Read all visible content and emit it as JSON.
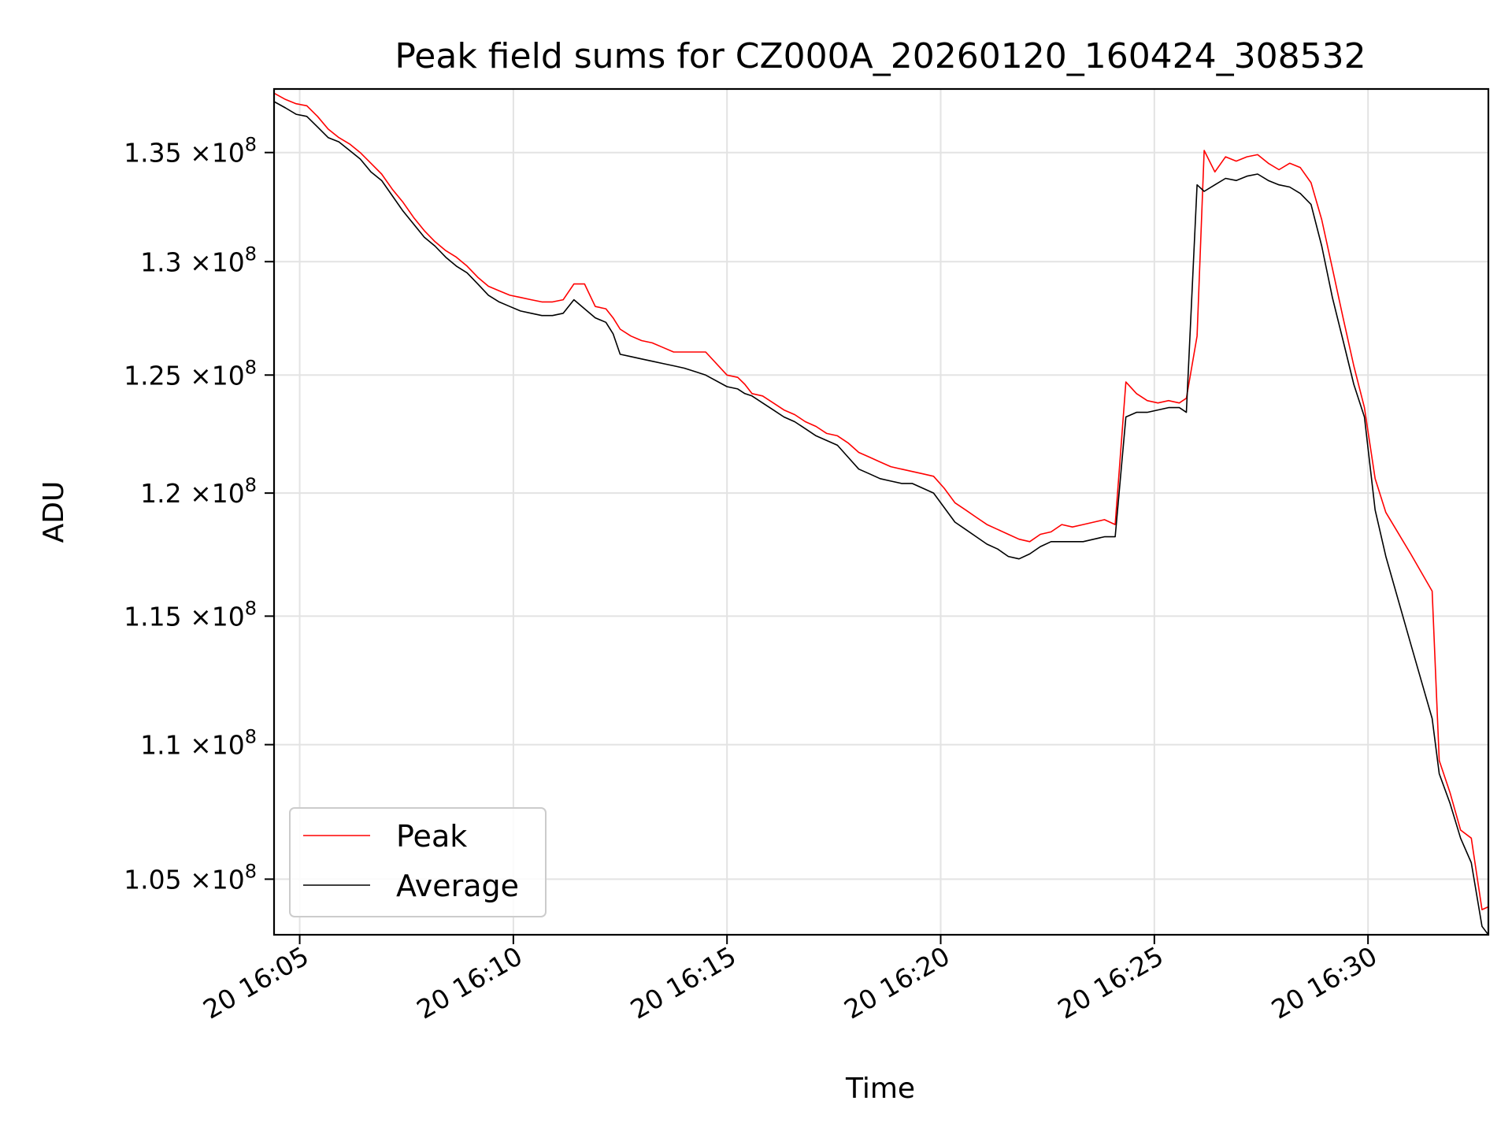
{
  "chart_data": {
    "type": "line",
    "title": "Peak field sums for CZ000A_20260120_160424_308532",
    "xlabel": "Time",
    "ylabel": "ADU",
    "y_scale": "log",
    "grid": true,
    "legend_position": "lower-left",
    "x_range": [
      "20 16:04:24",
      "20 16:32:49"
    ],
    "ylim": [
      103000000,
      138000000
    ],
    "x_ticks": [
      {
        "x": "20 16:05:00",
        "label": "20 16:05"
      },
      {
        "x": "20 16:10:00",
        "label": "20 16:10"
      },
      {
        "x": "20 16:15:00",
        "label": "20 16:15"
      },
      {
        "x": "20 16:20:00",
        "label": "20 16:20"
      },
      {
        "x": "20 16:25:00",
        "label": "20 16:25"
      },
      {
        "x": "20 16:30:00",
        "label": "20 16:30"
      }
    ],
    "y_ticks": [
      {
        "value": 105000000,
        "mantissa": "1.05",
        "exponent": "8"
      },
      {
        "value": 110000000,
        "mantissa": "1.1",
        "exponent": "8"
      },
      {
        "value": 115000000,
        "mantissa": "1.15",
        "exponent": "8"
      },
      {
        "value": 120000000,
        "mantissa": "1.2",
        "exponent": "8"
      },
      {
        "value": 125000000,
        "mantissa": "1.25",
        "exponent": "8"
      },
      {
        "value": 130000000,
        "mantissa": "1.3",
        "exponent": "8"
      },
      {
        "value": 135000000,
        "mantissa": "1.35",
        "exponent": "8"
      }
    ],
    "tick_times_label": "×10",
    "series": [
      {
        "name": "Peak",
        "color": "#ff0000",
        "x": [
          "20 16:04:24",
          "20 16:04:40",
          "20 16:04:55",
          "20 16:05:10",
          "20 16:05:25",
          "20 16:05:40",
          "20 16:05:55",
          "20 16:06:10",
          "20 16:06:25",
          "20 16:06:40",
          "20 16:06:55",
          "20 16:07:10",
          "20 16:07:25",
          "20 16:07:40",
          "20 16:07:55",
          "20 16:08:10",
          "20 16:08:25",
          "20 16:08:40",
          "20 16:08:55",
          "20 16:09:10",
          "20 16:09:25",
          "20 16:09:40",
          "20 16:09:55",
          "20 16:10:10",
          "20 16:10:25",
          "20 16:10:40",
          "20 16:10:55",
          "20 16:11:10",
          "20 16:11:25",
          "20 16:11:40",
          "20 16:11:55",
          "20 16:12:10",
          "20 16:12:20",
          "20 16:12:30",
          "20 16:12:45",
          "20 16:13:00",
          "20 16:13:15",
          "20 16:13:30",
          "20 16:13:45",
          "20 16:14:00",
          "20 16:14:10",
          "20 16:14:20",
          "20 16:14:30",
          "20 16:15:00",
          "20 16:15:15",
          "20 16:15:25",
          "20 16:15:35",
          "20 16:15:50",
          "20 16:16:05",
          "20 16:16:20",
          "20 16:16:35",
          "20 16:16:50",
          "20 16:17:05",
          "20 16:17:20",
          "20 16:17:35",
          "20 16:17:50",
          "20 16:18:05",
          "20 16:18:20",
          "20 16:18:35",
          "20 16:18:50",
          "20 16:19:05",
          "20 16:19:20",
          "20 16:19:35",
          "20 16:19:50",
          "20 16:20:05",
          "20 16:20:20",
          "20 16:20:35",
          "20 16:20:50",
          "20 16:21:05",
          "20 16:21:20",
          "20 16:21:35",
          "20 16:21:50",
          "20 16:22:05",
          "20 16:22:20",
          "20 16:22:35",
          "20 16:22:50",
          "20 16:23:05",
          "20 16:23:20",
          "20 16:23:35",
          "20 16:23:50",
          "20 16:24:05",
          "20 16:24:20",
          "20 16:24:35",
          "20 16:24:50",
          "20 16:25:05",
          "20 16:25:20",
          "20 16:25:35",
          "20 16:25:45",
          "20 16:26:00",
          "20 16:26:10",
          "20 16:26:25",
          "20 16:26:40",
          "20 16:26:55",
          "20 16:27:10",
          "20 16:27:25",
          "20 16:27:40",
          "20 16:27:55",
          "20 16:28:10",
          "20 16:28:25",
          "20 16:28:40",
          "20 16:28:55",
          "20 16:29:10",
          "20 16:29:25",
          "20 16:29:40",
          "20 16:29:55",
          "20 16:30:10",
          "20 16:30:25",
          "20 16:31:00",
          "20 16:31:30",
          "20 16:31:40",
          "20 16:31:55",
          "20 16:32:10",
          "20 16:32:25",
          "20 16:32:40",
          "20 16:32:49"
        ],
        "values": [
          137800000,
          137500000,
          137300000,
          137200000,
          136700000,
          136100000,
          135700000,
          135400000,
          135000000,
          134500000,
          134000000,
          133300000,
          132700000,
          132000000,
          131400000,
          130900000,
          130500000,
          130200000,
          129800000,
          129300000,
          128900000,
          128700000,
          128500000,
          128400000,
          128300000,
          128200000,
          128200000,
          128300000,
          129000000,
          129000000,
          128000000,
          127900000,
          127500000,
          127000000,
          126700000,
          126500000,
          126400000,
          126200000,
          126000000,
          126000000,
          126000000,
          126000000,
          126000000,
          125000000,
          124900000,
          124600000,
          124200000,
          124100000,
          123800000,
          123500000,
          123300000,
          123000000,
          122800000,
          122500000,
          122400000,
          122100000,
          121700000,
          121500000,
          121300000,
          121100000,
          121000000,
          120900000,
          120800000,
          120700000,
          120200000,
          119600000,
          119300000,
          119000000,
          118700000,
          118500000,
          118300000,
          118100000,
          118000000,
          118300000,
          118400000,
          118700000,
          118600000,
          118700000,
          118800000,
          118900000,
          118700000,
          124700000,
          124200000,
          123900000,
          123800000,
          123900000,
          123800000,
          124000000,
          126700000,
          135100000,
          134100000,
          134800000,
          134600000,
          134800000,
          134900000,
          134500000,
          134200000,
          134500000,
          134300000,
          133600000,
          131900000,
          129700000,
          127500000,
          125400000,
          123600000,
          120600000,
          119200000,
          117500000,
          116000000,
          109400000,
          108200000,
          106800000,
          106500000,
          103900000,
          104000000
        ]
      },
      {
        "name": "Average",
        "color": "#000000",
        "x": [
          "20 16:04:24",
          "20 16:04:40",
          "20 16:04:55",
          "20 16:05:10",
          "20 16:05:25",
          "20 16:05:40",
          "20 16:05:55",
          "20 16:06:10",
          "20 16:06:25",
          "20 16:06:40",
          "20 16:06:55",
          "20 16:07:10",
          "20 16:07:25",
          "20 16:07:40",
          "20 16:07:55",
          "20 16:08:10",
          "20 16:08:25",
          "20 16:08:40",
          "20 16:08:55",
          "20 16:09:10",
          "20 16:09:25",
          "20 16:09:40",
          "20 16:09:55",
          "20 16:10:10",
          "20 16:10:25",
          "20 16:10:40",
          "20 16:10:55",
          "20 16:11:10",
          "20 16:11:25",
          "20 16:11:40",
          "20 16:11:55",
          "20 16:12:10",
          "20 16:12:20",
          "20 16:12:30",
          "20 16:12:45",
          "20 16:13:00",
          "20 16:13:15",
          "20 16:13:30",
          "20 16:13:45",
          "20 16:14:00",
          "20 16:14:10",
          "20 16:14:20",
          "20 16:14:30",
          "20 16:15:00",
          "20 16:15:15",
          "20 16:15:25",
          "20 16:15:35",
          "20 16:15:50",
          "20 16:16:05",
          "20 16:16:20",
          "20 16:16:35",
          "20 16:16:50",
          "20 16:17:05",
          "20 16:17:20",
          "20 16:17:35",
          "20 16:17:50",
          "20 16:18:05",
          "20 16:18:20",
          "20 16:18:35",
          "20 16:18:50",
          "20 16:19:05",
          "20 16:19:20",
          "20 16:19:35",
          "20 16:19:50",
          "20 16:20:05",
          "20 16:20:20",
          "20 16:20:35",
          "20 16:20:50",
          "20 16:21:05",
          "20 16:21:20",
          "20 16:21:35",
          "20 16:21:50",
          "20 16:22:05",
          "20 16:22:20",
          "20 16:22:35",
          "20 16:22:50",
          "20 16:23:05",
          "20 16:23:20",
          "20 16:23:35",
          "20 16:23:50",
          "20 16:24:05",
          "20 16:24:20",
          "20 16:24:35",
          "20 16:24:50",
          "20 16:25:05",
          "20 16:25:20",
          "20 16:25:35",
          "20 16:25:45",
          "20 16:26:00",
          "20 16:26:10",
          "20 16:26:25",
          "20 16:26:40",
          "20 16:26:55",
          "20 16:27:10",
          "20 16:27:25",
          "20 16:27:40",
          "20 16:27:55",
          "20 16:28:10",
          "20 16:28:25",
          "20 16:28:40",
          "20 16:28:55",
          "20 16:29:10",
          "20 16:29:25",
          "20 16:29:40",
          "20 16:29:55",
          "20 16:30:10",
          "20 16:30:25",
          "20 16:31:00",
          "20 16:31:30",
          "20 16:31:40",
          "20 16:31:55",
          "20 16:32:10",
          "20 16:32:25",
          "20 16:32:40",
          "20 16:32:49"
        ],
        "values": [
          137400000,
          137100000,
          136800000,
          136700000,
          136200000,
          135700000,
          135500000,
          135100000,
          134700000,
          134100000,
          133700000,
          133000000,
          132300000,
          131700000,
          131100000,
          130700000,
          130200000,
          129800000,
          129500000,
          129000000,
          128500000,
          128200000,
          128000000,
          127800000,
          127700000,
          127600000,
          127600000,
          127700000,
          128300000,
          127900000,
          127500000,
          127300000,
          126800000,
          125900000,
          125800000,
          125700000,
          125600000,
          125500000,
          125400000,
          125300000,
          125200000,
          125100000,
          125000000,
          124500000,
          124400000,
          124200000,
          124100000,
          123800000,
          123500000,
          123200000,
          123000000,
          122700000,
          122400000,
          122200000,
          122000000,
          121500000,
          121000000,
          120800000,
          120600000,
          120500000,
          120400000,
          120400000,
          120200000,
          120000000,
          119400000,
          118800000,
          118500000,
          118200000,
          117900000,
          117700000,
          117400000,
          117300000,
          117500000,
          117800000,
          118000000,
          118000000,
          118000000,
          118000000,
          118100000,
          118200000,
          118200000,
          123200000,
          123400000,
          123400000,
          123500000,
          123600000,
          123600000,
          123400000,
          133500000,
          133200000,
          133500000,
          133800000,
          133700000,
          133900000,
          134000000,
          133700000,
          133500000,
          133400000,
          133100000,
          132600000,
          130700000,
          128400000,
          126500000,
          124600000,
          123200000,
          119300000,
          117400000,
          113900000,
          111000000,
          108900000,
          107800000,
          106500000,
          105600000,
          103300000,
          103000000
        ]
      }
    ]
  }
}
